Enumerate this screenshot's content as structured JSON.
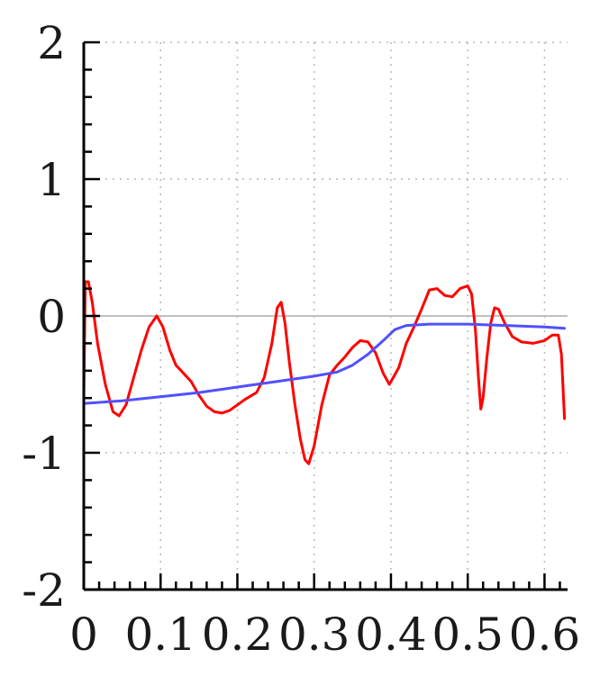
{
  "chart_data": {
    "type": "line",
    "title": "",
    "xlabel": "",
    "ylabel": "",
    "xlim": [
      0,
      0.63
    ],
    "ylim": [
      -2,
      2
    ],
    "grid": true,
    "legend": "none",
    "x_ticks": [
      {
        "value": 0,
        "label": "0"
      },
      {
        "value": 0.1,
        "label": "0.1"
      },
      {
        "value": 0.2,
        "label": "0.2"
      },
      {
        "value": 0.3,
        "label": "0.3"
      },
      {
        "value": 0.4,
        "label": "0.4"
      },
      {
        "value": 0.5,
        "label": "0.5"
      },
      {
        "value": 0.6,
        "label": "0.6"
      }
    ],
    "y_ticks": [
      {
        "value": 2,
        "label": "2"
      },
      {
        "value": 1,
        "label": "1"
      },
      {
        "value": 0,
        "label": "0"
      },
      {
        "value": -1,
        "label": "-1"
      },
      {
        "value": -2,
        "label": "-2"
      }
    ],
    "zero_line_color": "#c0c0c0",
    "series": [
      {
        "color": "#ff0000",
        "points": [
          [
            0.0,
            -0.6
          ],
          [
            0.002,
            0.25
          ],
          [
            0.006,
            0.25
          ],
          [
            0.011,
            0.1
          ],
          [
            0.018,
            -0.2
          ],
          [
            0.028,
            -0.5
          ],
          [
            0.038,
            -0.7
          ],
          [
            0.046,
            -0.73
          ],
          [
            0.055,
            -0.65
          ],
          [
            0.065,
            -0.45
          ],
          [
            0.075,
            -0.25
          ],
          [
            0.085,
            -0.08
          ],
          [
            0.095,
            0.0
          ],
          [
            0.103,
            -0.08
          ],
          [
            0.112,
            -0.25
          ],
          [
            0.12,
            -0.36
          ],
          [
            0.13,
            -0.42
          ],
          [
            0.14,
            -0.48
          ],
          [
            0.15,
            -0.58
          ],
          [
            0.16,
            -0.66
          ],
          [
            0.17,
            -0.7
          ],
          [
            0.18,
            -0.71
          ],
          [
            0.19,
            -0.69
          ],
          [
            0.2,
            -0.65
          ],
          [
            0.21,
            -0.61
          ],
          [
            0.225,
            -0.56
          ],
          [
            0.235,
            -0.45
          ],
          [
            0.245,
            -0.2
          ],
          [
            0.252,
            0.06
          ],
          [
            0.257,
            0.1
          ],
          [
            0.262,
            -0.05
          ],
          [
            0.268,
            -0.35
          ],
          [
            0.275,
            -0.65
          ],
          [
            0.282,
            -0.9
          ],
          [
            0.288,
            -1.05
          ],
          [
            0.293,
            -1.08
          ],
          [
            0.3,
            -0.95
          ],
          [
            0.31,
            -0.65
          ],
          [
            0.32,
            -0.43
          ],
          [
            0.33,
            -0.36
          ],
          [
            0.34,
            -0.3
          ],
          [
            0.35,
            -0.23
          ],
          [
            0.36,
            -0.18
          ],
          [
            0.37,
            -0.19
          ],
          [
            0.38,
            -0.27
          ],
          [
            0.39,
            -0.42
          ],
          [
            0.398,
            -0.5
          ],
          [
            0.41,
            -0.38
          ],
          [
            0.42,
            -0.2
          ],
          [
            0.43,
            -0.08
          ],
          [
            0.44,
            0.05
          ],
          [
            0.45,
            0.19
          ],
          [
            0.46,
            0.2
          ],
          [
            0.47,
            0.15
          ],
          [
            0.48,
            0.14
          ],
          [
            0.49,
            0.2
          ],
          [
            0.5,
            0.22
          ],
          [
            0.505,
            0.16
          ],
          [
            0.51,
            -0.1
          ],
          [
            0.514,
            -0.45
          ],
          [
            0.517,
            -0.68
          ],
          [
            0.52,
            -0.6
          ],
          [
            0.525,
            -0.3
          ],
          [
            0.53,
            -0.05
          ],
          [
            0.535,
            0.06
          ],
          [
            0.54,
            0.05
          ],
          [
            0.548,
            -0.05
          ],
          [
            0.558,
            -0.15
          ],
          [
            0.57,
            -0.19
          ],
          [
            0.585,
            -0.2
          ],
          [
            0.6,
            -0.18
          ],
          [
            0.61,
            -0.14
          ],
          [
            0.618,
            -0.14
          ],
          [
            0.622,
            -0.28
          ],
          [
            0.626,
            -0.75
          ]
        ]
      },
      {
        "color": "#5050ff",
        "points": [
          [
            0.0,
            -0.64
          ],
          [
            0.05,
            -0.62
          ],
          [
            0.1,
            -0.59
          ],
          [
            0.15,
            -0.56
          ],
          [
            0.2,
            -0.52
          ],
          [
            0.25,
            -0.48
          ],
          [
            0.3,
            -0.44
          ],
          [
            0.33,
            -0.41
          ],
          [
            0.35,
            -0.36
          ],
          [
            0.37,
            -0.28
          ],
          [
            0.39,
            -0.18
          ],
          [
            0.405,
            -0.1
          ],
          [
            0.42,
            -0.07
          ],
          [
            0.45,
            -0.06
          ],
          [
            0.5,
            -0.06
          ],
          [
            0.55,
            -0.07
          ],
          [
            0.6,
            -0.08
          ],
          [
            0.626,
            -0.09
          ]
        ]
      }
    ]
  }
}
